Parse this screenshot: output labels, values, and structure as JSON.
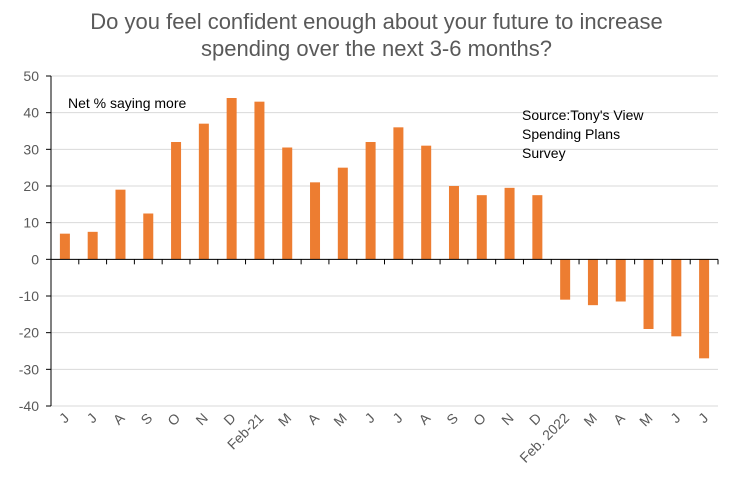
{
  "chart_data": {
    "type": "bar",
    "title_lines": [
      "Do you feel confident enough about your future to increase",
      "spending over the next 3-6 months?"
    ],
    "categories": [
      "J",
      "J",
      "A",
      "S",
      "O",
      "N",
      "D",
      "Feb-21",
      "M",
      "A",
      "M",
      "J",
      "J",
      "A",
      "S",
      "O",
      "N",
      "D",
      "Feb. 2022",
      "M",
      "A",
      "M",
      "J",
      "J"
    ],
    "series": [
      {
        "name": "Net % saying more",
        "values": [
          7,
          7.5,
          19,
          12.5,
          32,
          37,
          44,
          43,
          30.5,
          21,
          25,
          32,
          36,
          31,
          20,
          17.5,
          19.5,
          17.5,
          -11,
          -12.5,
          -11.5,
          -19,
          -21,
          -27
        ]
      }
    ],
    "ylim": [
      -40,
      50
    ],
    "yticks": [
      -40,
      -30,
      -20,
      -10,
      0,
      10,
      20,
      30,
      40,
      50
    ],
    "xlabel": "",
    "ylabel": "",
    "grid": true,
    "bar_color": "#ED7D31",
    "series_label": "Net % saying more",
    "source_lines": [
      "Source:Tony's View",
      "Spending Plans",
      "Survey"
    ]
  }
}
